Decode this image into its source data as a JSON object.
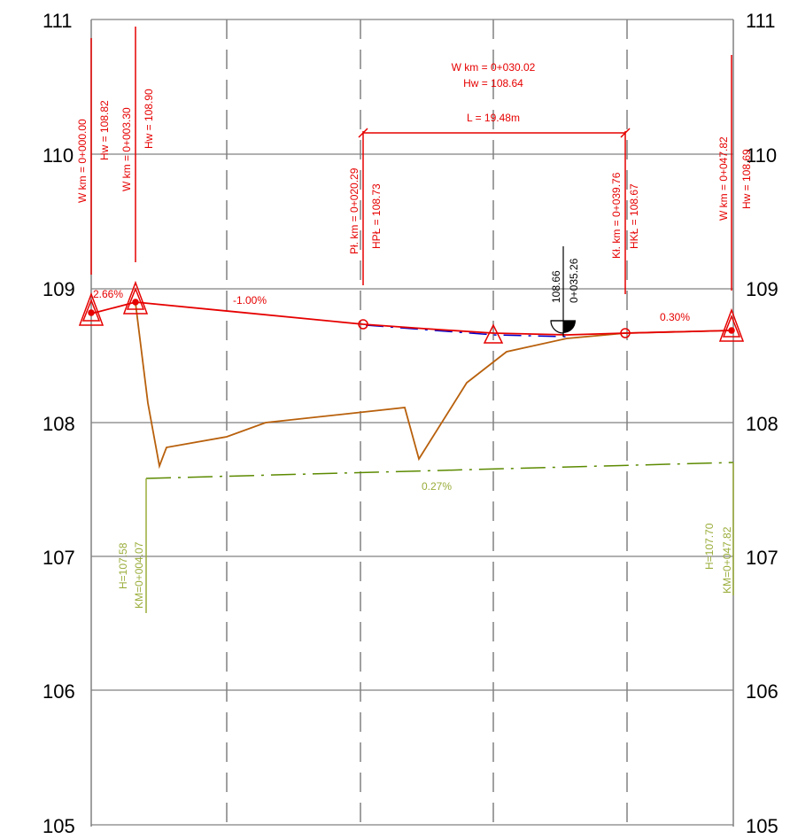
{
  "y_axis": {
    "left": [
      "111",
      "110",
      "109",
      "108",
      "107",
      "106",
      "105"
    ],
    "right": [
      "111",
      "110",
      "109",
      "108",
      "107",
      "106",
      "105"
    ]
  },
  "profile": {
    "vertex_labels": [
      {
        "km": "W km = 0+000.00",
        "h": "Hw = 108.82"
      },
      {
        "km": "W km = 0+003.30",
        "h": "Hw = 108.90"
      },
      {
        "km": "W km = 0+047.82",
        "h": "Hw = 108.69"
      }
    ],
    "curve": {
      "start": {
        "km": "Pł. km = 0+020.29",
        "h": "HPŁ = 108.73"
      },
      "end": {
        "km": "Kł. km = 0+039.76",
        "h": "HKŁ = 108.67"
      },
      "vertex_km": "W km = 0+030.02",
      "vertex_h": "Hw = 108.64",
      "length": "L = 19.48m"
    },
    "low_point": {
      "h": "108.66",
      "km": "0+035.26"
    },
    "grades": [
      "2.66%",
      "-1.00%",
      "0.30%"
    ]
  },
  "ditch": {
    "grade": "0.27%",
    "start": {
      "h": "H=107.58",
      "km": "KM=0+004.07"
    },
    "end": {
      "h": "H=107.70",
      "km": "KM=0+047.82"
    }
  },
  "colors": {
    "grid": "#808080",
    "design": "#e60000",
    "terrain": "#b8600c",
    "ditch": "#5c8a00",
    "ditch_text": "#9aad3a",
    "vertical_curve": "#0000cc"
  }
}
